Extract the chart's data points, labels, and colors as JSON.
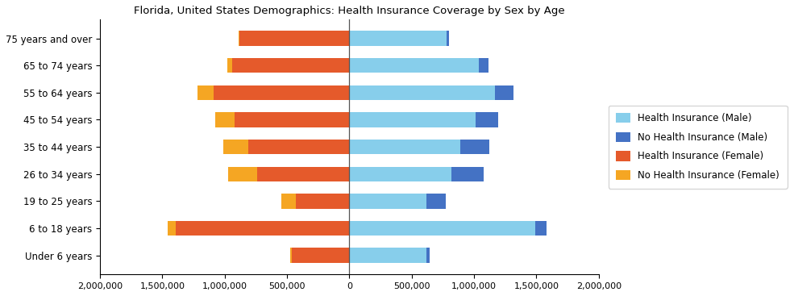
{
  "title": "Florida, United States Demographics: Health Insurance Coverage by Sex by Age",
  "age_groups": [
    "Under 6 years",
    "6 to 18 years",
    "19 to 25 years",
    "26 to 34 years",
    "35 to 44 years",
    "45 to 54 years",
    "55 to 64 years",
    "65 to 74 years",
    "75 years and over"
  ],
  "health_ins_male": [
    620000,
    1490000,
    620000,
    820000,
    890000,
    1010000,
    1170000,
    1040000,
    780000
  ],
  "no_health_ins_male": [
    25000,
    90000,
    155000,
    255000,
    235000,
    185000,
    145000,
    75000,
    20000
  ],
  "health_ins_female": [
    460000,
    1390000,
    430000,
    740000,
    810000,
    920000,
    1090000,
    940000,
    880000
  ],
  "no_health_ins_female": [
    15000,
    65000,
    115000,
    230000,
    200000,
    155000,
    125000,
    40000,
    10000
  ],
  "color_health_ins_male": "#87CEEB",
  "color_no_health_ins_male": "#4472C4",
  "color_health_ins_female": "#E55A2B",
  "color_no_health_ins_female": "#F5A623",
  "xlim": 2000000,
  "xticks": [
    -2000000,
    -1500000,
    -1000000,
    -500000,
    0,
    500000,
    1000000,
    1500000,
    2000000
  ],
  "xticklabels": [
    "2,000,000",
    "1,500,000",
    "1,000,000",
    "500,000",
    "0",
    "500,000",
    "1,000,000",
    "1,500,000",
    "2,000,000"
  ],
  "bar_height": 0.55
}
